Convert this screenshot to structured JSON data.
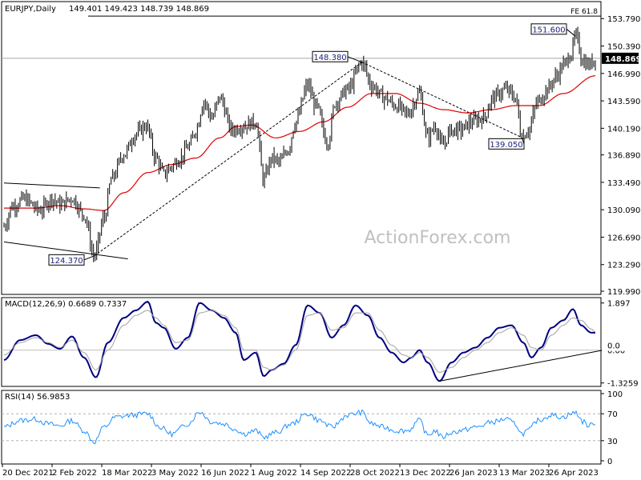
{
  "header": {
    "symbol": "EURJPY,Daily",
    "ohlc": "149.401 149.423 148.739 148.869",
    "watermark": "ActionForex.com"
  },
  "chart_data": [
    {
      "type": "bar",
      "title": "EURJPY,Daily",
      "ylim": [
        119.99,
        155.5
      ],
      "x_tick_labels": [
        "20 Dec 2021",
        "2 Feb 2022",
        "18 Mar 2022",
        "3 May 2022",
        "16 Jun 2022",
        "1 Aug 2022",
        "14 Sep 2022",
        "28 Oct 2022",
        "13 Dec 2022",
        "26 Jan 2023",
        "13 Mar 2023",
        "26 Apr 2023"
      ],
      "y_ticks": [
        {
          "value": 153.79,
          "label": "153.790"
        },
        {
          "value": 150.39,
          "label": "150.390"
        },
        {
          "value": 146.99,
          "label": "146.990"
        },
        {
          "value": 143.59,
          "label": "143.590"
        },
        {
          "value": 140.19,
          "label": "140.190"
        },
        {
          "value": 136.89,
          "label": "136.890"
        },
        {
          "value": 133.49,
          "label": "133.490"
        },
        {
          "value": 130.09,
          "label": "130.090"
        },
        {
          "value": 126.69,
          "label": "126.690"
        },
        {
          "value": 123.29,
          "label": "123.290"
        },
        {
          "value": 119.99,
          "label": "119.990"
        }
      ],
      "current_price": {
        "value": 148.869,
        "label": "148.869"
      },
      "fib_level": {
        "value": 154.1,
        "label": "FE 61.8"
      },
      "price_anchors": [
        [
          0,
          128.0
        ],
        [
          10,
          130.5
        ],
        [
          25,
          131.4
        ],
        [
          45,
          130.0
        ],
        [
          60,
          131.5
        ],
        [
          70,
          130.7
        ],
        [
          85,
          131.5
        ],
        [
          100,
          129.5
        ],
        [
          113,
          124.37
        ],
        [
          125,
          129.0
        ],
        [
          135,
          134.0
        ],
        [
          150,
          137.0
        ],
        [
          165,
          139.5
        ],
        [
          178,
          140.5
        ],
        [
          190,
          136.5
        ],
        [
          200,
          134.5
        ],
        [
          210,
          135.5
        ],
        [
          220,
          136.5
        ],
        [
          232,
          138.0
        ],
        [
          240,
          140.0
        ],
        [
          250,
          143.5
        ],
        [
          260,
          141.5
        ],
        [
          270,
          144.0
        ],
        [
          285,
          140.0
        ],
        [
          300,
          140.5
        ],
        [
          315,
          141.0
        ],
        [
          325,
          133.8
        ],
        [
          335,
          136.5
        ],
        [
          345,
          136.0
        ],
        [
          355,
          137.5
        ],
        [
          365,
          141.0
        ],
        [
          380,
          145.5
        ],
        [
          390,
          143.0
        ],
        [
          405,
          138.5
        ],
        [
          415,
          143.5
        ],
        [
          430,
          145.0
        ],
        [
          448,
          148.38
        ],
        [
          460,
          145.5
        ],
        [
          475,
          144.0
        ],
        [
          490,
          143.0
        ],
        [
          505,
          142.0
        ],
        [
          520,
          144.5
        ],
        [
          530,
          139.0
        ],
        [
          540,
          140.5
        ],
        [
          548,
          138.0
        ],
        [
          560,
          140.0
        ],
        [
          572,
          140.0
        ],
        [
          585,
          141.0
        ],
        [
          600,
          141.5
        ],
        [
          612,
          144.0
        ],
        [
          628,
          145.0
        ],
        [
          640,
          144.0
        ],
        [
          648,
          139.05
        ],
        [
          656,
          140.0
        ],
        [
          668,
          143.5
        ],
        [
          680,
          145.0
        ],
        [
          690,
          146.5
        ],
        [
          700,
          148.0
        ],
        [
          710,
          149.5
        ],
        [
          715,
          151.6
        ],
        [
          725,
          148.5
        ],
        [
          732,
          148.0
        ],
        [
          740,
          148.869
        ]
      ],
      "moving_average_anchors": [
        [
          0,
          130.3
        ],
        [
          40,
          130.3
        ],
        [
          70,
          130.6
        ],
        [
          100,
          130.2
        ],
        [
          125,
          130.0
        ],
        [
          150,
          132.2
        ],
        [
          180,
          134.7
        ],
        [
          210,
          135.7
        ],
        [
          240,
          136.5
        ],
        [
          270,
          139.0
        ],
        [
          290,
          140.4
        ],
        [
          310,
          140.6
        ],
        [
          340,
          139.0
        ],
        [
          370,
          139.8
        ],
        [
          400,
          141.0
        ],
        [
          430,
          142.8
        ],
        [
          460,
          144.5
        ],
        [
          490,
          144.5
        ],
        [
          520,
          143.3
        ],
        [
          550,
          142.5
        ],
        [
          580,
          142.1
        ],
        [
          610,
          142.5
        ],
        [
          640,
          143.0
        ],
        [
          670,
          143.0
        ],
        [
          700,
          144.5
        ],
        [
          740,
          146.7
        ]
      ],
      "annotations": [
        {
          "label": "124.370",
          "value": 124.37
        },
        {
          "label": "148.380",
          "value": 148.38
        },
        {
          "label": "151.600",
          "value": 151.6
        },
        {
          "label": "139.050",
          "value": 139.05
        }
      ],
      "trendlines": [
        {
          "name": "upper-channel",
          "points": [
            [
              0,
              133.4
            ],
            [
              120,
              132.8
            ]
          ]
        },
        {
          "name": "lower-channel",
          "points": [
            [
              0,
              126.1
            ],
            [
              155,
              124.0
            ]
          ]
        },
        {
          "name": "rise-to-148",
          "points": [
            [
              113,
              124.37
            ],
            [
              448,
              148.38
            ]
          ]
        },
        {
          "name": "fall-to-139",
          "points": [
            [
              448,
              148.38
            ],
            [
              648,
              139.05
            ]
          ]
        }
      ]
    },
    {
      "type": "line",
      "title": "MACD(12,26,9) 0.6689 0.7337",
      "ylim": [
        -1.4,
        2.05
      ],
      "y_ticks": [
        {
          "value": 1.897,
          "label": "1.897"
        },
        {
          "value": 0.0,
          "label": "0.00"
        },
        {
          "value": -1.3259,
          "label": "-1.3259"
        }
      ],
      "current_value": {
        "value": 0.0,
        "label": "0.0"
      },
      "series": [
        {
          "name": "",
          "anchors": [
            [
              0,
              -0.4
            ],
            [
              20,
              0.4
            ],
            [
              40,
              0.6
            ],
            [
              55,
              0.25
            ],
            [
              70,
              0.05
            ],
            [
              85,
              0.55
            ],
            [
              100,
              -0.3
            ],
            [
              115,
              -1.1
            ],
            [
              130,
              0.3
            ],
            [
              150,
              1.3
            ],
            [
              165,
              1.6
            ],
            [
              180,
              1.95
            ],
            [
              190,
              1.1
            ],
            [
              200,
              0.9
            ],
            [
              215,
              0.05
            ],
            [
              230,
              0.5
            ],
            [
              245,
              1.9
            ],
            [
              260,
              1.6
            ],
            [
              275,
              1.3
            ],
            [
              290,
              0.7
            ],
            [
              300,
              -0.4
            ],
            [
              315,
              -0.1
            ],
            [
              325,
              -1.05
            ],
            [
              335,
              -0.8
            ],
            [
              350,
              -0.55
            ],
            [
              365,
              0.2
            ],
            [
              380,
              1.8
            ],
            [
              395,
              1.5
            ],
            [
              410,
              0.5
            ],
            [
              425,
              1.0
            ],
            [
              440,
              1.8
            ],
            [
              455,
              1.4
            ],
            [
              470,
              0.5
            ],
            [
              485,
              -0.1
            ],
            [
              500,
              -0.5
            ],
            [
              510,
              -0.3
            ],
            [
              520,
              0.0
            ],
            [
              530,
              -0.5
            ],
            [
              545,
              -1.25
            ],
            [
              560,
              -0.5
            ],
            [
              575,
              -0.1
            ],
            [
              590,
              0.1
            ],
            [
              605,
              0.5
            ],
            [
              620,
              0.9
            ],
            [
              635,
              1.0
            ],
            [
              650,
              0.3
            ],
            [
              660,
              -0.3
            ],
            [
              672,
              0.1
            ],
            [
              685,
              0.9
            ],
            [
              700,
              1.2
            ],
            [
              712,
              1.65
            ],
            [
              722,
              1.0
            ],
            [
              735,
              0.7
            ],
            [
              740,
              0.7
            ]
          ]
        },
        {
          "name": "",
          "anchors": [
            [
              0,
              -0.2
            ],
            [
              20,
              0.3
            ],
            [
              40,
              0.5
            ],
            [
              55,
              0.3
            ],
            [
              70,
              0.1
            ],
            [
              85,
              0.4
            ],
            [
              100,
              -0.1
            ],
            [
              115,
              -0.8
            ],
            [
              130,
              0.0
            ],
            [
              150,
              1.0
            ],
            [
              165,
              1.4
            ],
            [
              180,
              1.6
            ],
            [
              190,
              1.3
            ],
            [
              200,
              1.0
            ],
            [
              215,
              0.3
            ],
            [
              230,
              0.4
            ],
            [
              245,
              1.5
            ],
            [
              260,
              1.6
            ],
            [
              275,
              1.4
            ],
            [
              290,
              0.9
            ],
            [
              300,
              0.0
            ],
            [
              315,
              0.0
            ],
            [
              325,
              -0.7
            ],
            [
              335,
              -0.8
            ],
            [
              350,
              -0.6
            ],
            [
              365,
              0.0
            ],
            [
              380,
              1.4
            ],
            [
              395,
              1.5
            ],
            [
              410,
              0.8
            ],
            [
              425,
              0.9
            ],
            [
              440,
              1.5
            ],
            [
              455,
              1.5
            ],
            [
              470,
              0.8
            ],
            [
              485,
              0.2
            ],
            [
              500,
              -0.2
            ],
            [
              510,
              -0.3
            ],
            [
              520,
              -0.1
            ],
            [
              530,
              -0.3
            ],
            [
              545,
              -0.9
            ],
            [
              560,
              -0.7
            ],
            [
              575,
              -0.3
            ],
            [
              590,
              0.0
            ],
            [
              605,
              0.3
            ],
            [
              620,
              0.7
            ],
            [
              635,
              0.9
            ],
            [
              650,
              0.6
            ],
            [
              660,
              0.1
            ],
            [
              672,
              0.0
            ],
            [
              685,
              0.6
            ],
            [
              700,
              1.0
            ],
            [
              712,
              1.3
            ],
            [
              722,
              1.2
            ],
            [
              735,
              0.85
            ],
            [
              740,
              0.73
            ]
          ]
        }
      ],
      "trendlines": [
        {
          "name": "macd-support",
          "points": [
            [
              545,
              -1.25
            ],
            [
              750,
              0.0
            ]
          ]
        }
      ]
    },
    {
      "type": "line",
      "title": "RSI(14) 56.9853",
      "ylim": [
        0,
        100
      ],
      "y_ticks": [
        {
          "value": 100,
          "label": "100"
        },
        {
          "value": 70,
          "label": "70"
        },
        {
          "value": 30,
          "label": "30"
        },
        {
          "value": 0,
          "label": "0"
        }
      ],
      "reference_levels": [
        70,
        30
      ],
      "series": [
        {
          "name": "",
          "anchors": [
            [
              0,
              50
            ],
            [
              20,
              60
            ],
            [
              40,
              62
            ],
            [
              55,
              55
            ],
            [
              70,
              52
            ],
            [
              85,
              60
            ],
            [
              100,
              45
            ],
            [
              113,
              28
            ],
            [
              125,
              50
            ],
            [
              140,
              65
            ],
            [
              160,
              68
            ],
            [
              180,
              70
            ],
            [
              195,
              50
            ],
            [
              210,
              40
            ],
            [
              230,
              55
            ],
            [
              245,
              73
            ],
            [
              260,
              58
            ],
            [
              275,
              55
            ],
            [
              290,
              47
            ],
            [
              300,
              40
            ],
            [
              315,
              45
            ],
            [
              325,
              35
            ],
            [
              340,
              42
            ],
            [
              360,
              55
            ],
            [
              380,
              70
            ],
            [
              395,
              60
            ],
            [
              410,
              50
            ],
            [
              430,
              68
            ],
            [
              448,
              72
            ],
            [
              460,
              55
            ],
            [
              475,
              50
            ],
            [
              490,
              45
            ],
            [
              505,
              45
            ],
            [
              520,
              60
            ],
            [
              530,
              38
            ],
            [
              540,
              45
            ],
            [
              548,
              35
            ],
            [
              560,
              42
            ],
            [
              572,
              45
            ],
            [
              590,
              50
            ],
            [
              612,
              58
            ],
            [
              628,
              62
            ],
            [
              640,
              55
            ],
            [
              648,
              40
            ],
            [
              656,
              45
            ],
            [
              668,
              60
            ],
            [
              685,
              68
            ],
            [
              700,
              65
            ],
            [
              710,
              70
            ],
            [
              715,
              72
            ],
            [
              725,
              58
            ],
            [
              732,
              52
            ],
            [
              740,
              57
            ]
          ]
        }
      ]
    }
  ]
}
